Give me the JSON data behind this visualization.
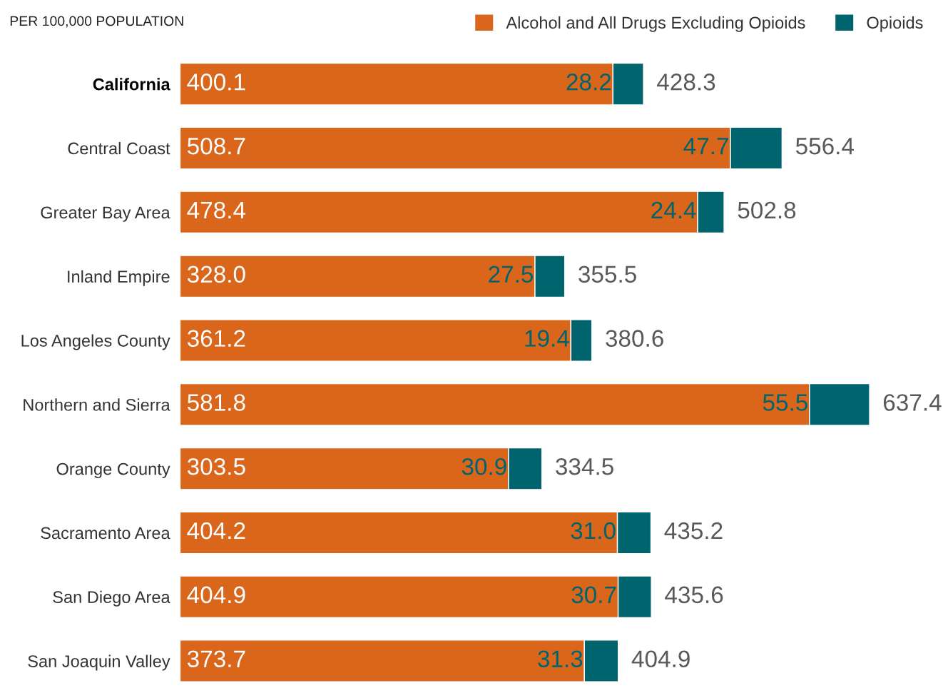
{
  "chart_data": {
    "type": "bar",
    "orientation": "horizontal",
    "stacked": true,
    "title": "PER 100,000 POPULATION",
    "categories": [
      "California",
      "Central Coast",
      "Greater Bay Area",
      "Inland Empire",
      "Los Angeles County",
      "Northern and Sierra",
      "Orange County",
      "Sacramento Area",
      "San Diego Area",
      "San Joaquin Valley"
    ],
    "series": [
      {
        "name": "Alcohol and All Drugs Excluding Opioids",
        "color": "#d9661b",
        "values": [
          400.1,
          508.7,
          478.4,
          328.0,
          361.2,
          581.8,
          303.5,
          404.2,
          404.9,
          373.7
        ],
        "value_labels": [
          "400.1",
          "508.7",
          "478.4",
          "328.0",
          "361.2",
          "581.8",
          "303.5",
          "404.2",
          "404.9",
          "373.7"
        ]
      },
      {
        "name": "Opioids",
        "color": "#00646e",
        "values": [
          28.2,
          47.7,
          24.4,
          27.5,
          19.4,
          55.5,
          30.9,
          31.0,
          30.7,
          31.3
        ],
        "value_labels": [
          "28.2",
          "47.7",
          "24.4",
          "27.5",
          "19.4",
          "55.5",
          "30.9",
          "31.0",
          "30.7",
          "31.3"
        ]
      }
    ],
    "totals": [
      "428.3",
      "556.4",
      "502.8",
      "355.5",
      "380.6",
      "637.4",
      "334.5",
      "435.2",
      "435.6",
      "404.9"
    ],
    "legend": "top right",
    "grid": false
  }
}
